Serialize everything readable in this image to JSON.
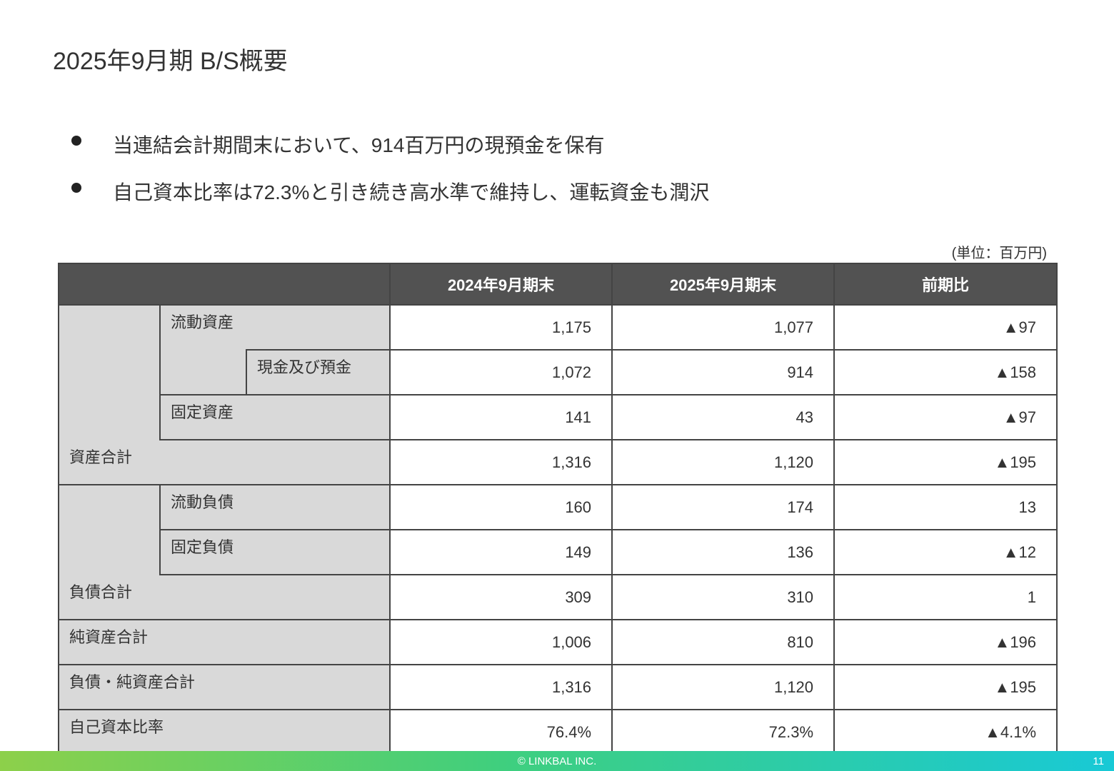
{
  "page_title": "2025年9月期  B/S概要",
  "bullets": [
    "当連結会計期間末において、914百万円の現預金を保有",
    "自己資本比率は72.3%と引き続き高水準で維持し、運転資金も潤沢"
  ],
  "unit_note": "(単位：百万円)",
  "table": {
    "headers": [
      "",
      "2024年9月期末",
      "2025年9月期末",
      "前期比"
    ],
    "rows": [
      {
        "label": "流動資産",
        "prev": "1,175",
        "curr": "1,077",
        "diff": "▲97"
      },
      {
        "label": "現金及び預金",
        "prev": "1,072",
        "curr": "914",
        "diff": "▲158"
      },
      {
        "label": "固定資産",
        "prev": "141",
        "curr": "43",
        "diff": "▲97"
      },
      {
        "label": "資産合計",
        "prev": "1,316",
        "curr": "1,120",
        "diff": "▲195"
      },
      {
        "label": "流動負債",
        "prev": "160",
        "curr": "174",
        "diff": "13"
      },
      {
        "label": "固定負債",
        "prev": "149",
        "curr": "136",
        "diff": "▲12"
      },
      {
        "label": "負債合計",
        "prev": "309",
        "curr": "310",
        "diff": "1"
      },
      {
        "label": "純資産合計",
        "prev": "1,006",
        "curr": "810",
        "diff": "▲196"
      },
      {
        "label": "負債・純資産合計",
        "prev": "1,316",
        "curr": "1,120",
        "diff": "▲195"
      },
      {
        "label": "自己資本比率",
        "prev": "76.4%",
        "curr": "72.3%",
        "diff": "▲4.1%"
      }
    ]
  },
  "footer": {
    "copyright": "© LINKBAL INC.",
    "page_number": "11"
  },
  "colors": {
    "header_bg": "#525252",
    "label_bg": "#d9d9d9",
    "footer_gradient_start": "#8dd04a",
    "footer_gradient_end": "#18c9d6"
  }
}
